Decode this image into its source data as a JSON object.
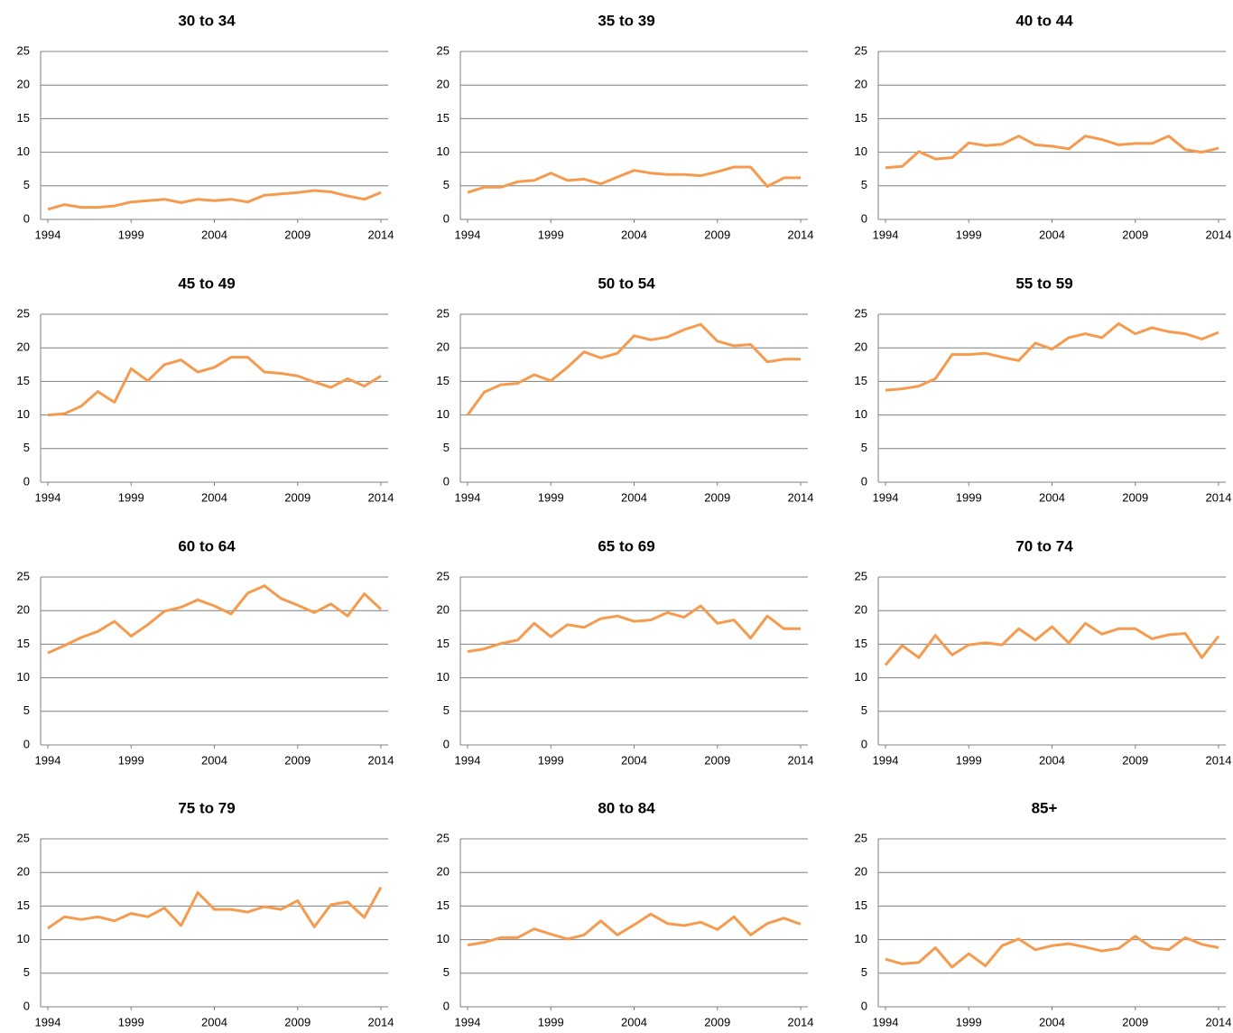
{
  "chart_data": [
    {
      "type": "line",
      "title": "30 to 34",
      "x": [
        1994,
        1995,
        1996,
        1997,
        1998,
        1999,
        2000,
        2001,
        2002,
        2003,
        2004,
        2005,
        2006,
        2007,
        2008,
        2009,
        2010,
        2011,
        2012,
        2013,
        2014
      ],
      "values": [
        1.5,
        2.2,
        1.8,
        1.8,
        2.0,
        2.6,
        2.8,
        3.0,
        2.5,
        3.0,
        2.8,
        3.0,
        2.6,
        3.6,
        3.8,
        4.0,
        4.3,
        4.1,
        3.5,
        3.0,
        4.0
      ],
      "color": "#f59b50",
      "xlim": [
        1994,
        2014
      ],
      "xticks": [
        1994,
        1999,
        2004,
        2009,
        2014
      ],
      "ylim": [
        0,
        25
      ],
      "yticks": [
        0,
        5,
        10,
        15,
        20,
        25
      ],
      "grid": true
    },
    {
      "type": "line",
      "title": "35 to 39",
      "x": [
        1994,
        1995,
        1996,
        1997,
        1998,
        1999,
        2000,
        2001,
        2002,
        2003,
        2004,
        2005,
        2006,
        2007,
        2008,
        2009,
        2010,
        2011,
        2012,
        2013,
        2014
      ],
      "values": [
        4.0,
        4.8,
        4.8,
        5.6,
        5.8,
        6.9,
        5.8,
        6.0,
        5.3,
        6.3,
        7.3,
        6.9,
        6.7,
        6.7,
        6.5,
        7.1,
        7.8,
        7.8,
        4.9,
        6.2,
        6.2
      ],
      "color": "#f59b50",
      "xlim": [
        1994,
        2014
      ],
      "xticks": [
        1994,
        1999,
        2004,
        2009,
        2014
      ],
      "ylim": [
        0,
        25
      ],
      "yticks": [
        0,
        5,
        10,
        15,
        20,
        25
      ],
      "grid": true
    },
    {
      "type": "line",
      "title": "40 to 44",
      "x": [
        1994,
        1995,
        1996,
        1997,
        1998,
        1999,
        2000,
        2001,
        2002,
        2003,
        2004,
        2005,
        2006,
        2007,
        2008,
        2009,
        2010,
        2011,
        2012,
        2013,
        2014
      ],
      "values": [
        7.7,
        7.9,
        10.1,
        9.0,
        9.2,
        11.4,
        11.0,
        11.2,
        12.4,
        11.1,
        10.9,
        10.5,
        12.4,
        11.9,
        11.1,
        11.3,
        11.3,
        12.4,
        10.4,
        10.0,
        10.6
      ],
      "color": "#f59b50",
      "xlim": [
        1994,
        2014
      ],
      "xticks": [
        1994,
        1999,
        2004,
        2009,
        2014
      ],
      "ylim": [
        0,
        25
      ],
      "yticks": [
        0,
        5,
        10,
        15,
        20,
        25
      ],
      "grid": true
    },
    {
      "type": "line",
      "title": "45 to 49",
      "x": [
        1994,
        1995,
        1996,
        1997,
        1998,
        1999,
        2000,
        2001,
        2002,
        2003,
        2004,
        2005,
        2006,
        2007,
        2008,
        2009,
        2010,
        2011,
        2012,
        2013,
        2014
      ],
      "values": [
        10.0,
        10.2,
        11.3,
        13.5,
        11.9,
        16.9,
        15.1,
        17.5,
        18.2,
        16.4,
        17.1,
        18.6,
        18.6,
        16.4,
        16.2,
        15.8,
        14.9,
        14.1,
        15.4,
        14.3,
        15.8
      ],
      "color": "#f59b50",
      "xlim": [
        1994,
        2014
      ],
      "xticks": [
        1994,
        1999,
        2004,
        2009,
        2014
      ],
      "ylim": [
        0,
        25
      ],
      "yticks": [
        0,
        5,
        10,
        15,
        20,
        25
      ],
      "grid": true
    },
    {
      "type": "line",
      "title": "50 to 54",
      "x": [
        1994,
        1995,
        1996,
        1997,
        1998,
        1999,
        2000,
        2001,
        2002,
        2003,
        2004,
        2005,
        2006,
        2007,
        2008,
        2009,
        2010,
        2011,
        2012,
        2013,
        2014
      ],
      "values": [
        10.0,
        13.4,
        14.5,
        14.7,
        16.0,
        15.1,
        17.1,
        19.4,
        18.5,
        19.2,
        21.8,
        21.2,
        21.6,
        22.7,
        23.5,
        21.0,
        20.3,
        20.5,
        17.9,
        18.3,
        18.3
      ],
      "color": "#f59b50",
      "xlim": [
        1994,
        2014
      ],
      "xticks": [
        1994,
        1999,
        2004,
        2009,
        2014
      ],
      "ylim": [
        0,
        25
      ],
      "yticks": [
        0,
        5,
        10,
        15,
        20,
        25
      ],
      "grid": true
    },
    {
      "type": "line",
      "title": "55 to 59",
      "x": [
        1994,
        1995,
        1996,
        1997,
        1998,
        1999,
        2000,
        2001,
        2002,
        2003,
        2004,
        2005,
        2006,
        2007,
        2008,
        2009,
        2010,
        2011,
        2012,
        2013,
        2014
      ],
      "values": [
        13.7,
        13.9,
        14.3,
        15.4,
        19.0,
        19.0,
        19.2,
        18.6,
        18.1,
        20.7,
        19.8,
        21.5,
        22.1,
        21.5,
        23.6,
        22.1,
        23.0,
        22.4,
        22.1,
        21.3,
        22.3
      ],
      "color": "#f59b50",
      "xlim": [
        1994,
        2014
      ],
      "xticks": [
        1994,
        1999,
        2004,
        2009,
        2014
      ],
      "ylim": [
        0,
        25
      ],
      "yticks": [
        0,
        5,
        10,
        15,
        20,
        25
      ],
      "grid": true
    },
    {
      "type": "line",
      "title": "60 to 64",
      "x": [
        1994,
        1995,
        1996,
        1997,
        1998,
        1999,
        2000,
        2001,
        2002,
        2003,
        2004,
        2005,
        2006,
        2007,
        2008,
        2009,
        2010,
        2011,
        2012,
        2013,
        2014
      ],
      "values": [
        13.7,
        14.8,
        16.0,
        16.9,
        18.4,
        16.2,
        17.9,
        19.9,
        20.5,
        21.6,
        20.7,
        19.5,
        22.6,
        23.7,
        21.8,
        20.8,
        19.7,
        21.0,
        19.2,
        22.5,
        20.2
      ],
      "color": "#f59b50",
      "xlim": [
        1994,
        2014
      ],
      "xticks": [
        1994,
        1999,
        2004,
        2009,
        2014
      ],
      "ylim": [
        0,
        25
      ],
      "yticks": [
        0,
        5,
        10,
        15,
        20,
        25
      ],
      "grid": true
    },
    {
      "type": "line",
      "title": "65 to 69",
      "x": [
        1994,
        1995,
        1996,
        1997,
        1998,
        1999,
        2000,
        2001,
        2002,
        2003,
        2004,
        2005,
        2006,
        2007,
        2008,
        2009,
        2010,
        2011,
        2012,
        2013,
        2014
      ],
      "values": [
        13.9,
        14.3,
        15.1,
        15.6,
        18.1,
        16.1,
        17.9,
        17.5,
        18.8,
        19.2,
        18.4,
        18.6,
        19.7,
        19.0,
        20.7,
        18.1,
        18.6,
        15.9,
        19.2,
        17.3,
        17.3
      ],
      "color": "#f59b50",
      "xlim": [
        1994,
        2014
      ],
      "xticks": [
        1994,
        1999,
        2004,
        2009,
        2014
      ],
      "ylim": [
        0,
        25
      ],
      "yticks": [
        0,
        5,
        10,
        15,
        20,
        25
      ],
      "grid": true
    },
    {
      "type": "line",
      "title": "70 to 74",
      "x": [
        1994,
        1995,
        1996,
        1997,
        1998,
        1999,
        2000,
        2001,
        2002,
        2003,
        2004,
        2005,
        2006,
        2007,
        2008,
        2009,
        2010,
        2011,
        2012,
        2013,
        2014
      ],
      "values": [
        11.9,
        14.8,
        13.0,
        16.3,
        13.4,
        14.9,
        15.2,
        14.9,
        17.3,
        15.6,
        17.6,
        15.2,
        18.1,
        16.5,
        17.3,
        17.3,
        15.8,
        16.4,
        16.6,
        13.0,
        16.2
      ],
      "color": "#f59b50",
      "xlim": [
        1994,
        2014
      ],
      "xticks": [
        1994,
        1999,
        2004,
        2009,
        2014
      ],
      "ylim": [
        0,
        25
      ],
      "yticks": [
        0,
        5,
        10,
        15,
        20,
        25
      ],
      "grid": true
    },
    {
      "type": "line",
      "title": "75 to 79",
      "x": [
        1994,
        1995,
        1996,
        1997,
        1998,
        1999,
        2000,
        2001,
        2002,
        2003,
        2004,
        2005,
        2006,
        2007,
        2008,
        2009,
        2010,
        2011,
        2012,
        2013,
        2014
      ],
      "values": [
        11.7,
        13.4,
        13.0,
        13.4,
        12.8,
        13.9,
        13.4,
        14.7,
        12.1,
        17.0,
        14.5,
        14.5,
        14.1,
        14.9,
        14.5,
        15.8,
        11.9,
        15.2,
        15.6,
        13.3,
        17.8
      ],
      "color": "#f59b50",
      "xlim": [
        1994,
        2014
      ],
      "xticks": [
        1994,
        1999,
        2004,
        2009,
        2014
      ],
      "ylim": [
        0,
        25
      ],
      "yticks": [
        0,
        5,
        10,
        15,
        20,
        25
      ],
      "grid": true
    },
    {
      "type": "line",
      "title": "80 to 84",
      "x": [
        1994,
        1995,
        1996,
        1997,
        1998,
        1999,
        2000,
        2001,
        2002,
        2003,
        2004,
        2005,
        2006,
        2007,
        2008,
        2009,
        2010,
        2011,
        2012,
        2013,
        2014
      ],
      "values": [
        9.2,
        9.6,
        10.3,
        10.3,
        11.6,
        10.8,
        10.1,
        10.7,
        12.8,
        10.7,
        12.2,
        13.8,
        12.4,
        12.1,
        12.6,
        11.5,
        13.4,
        10.7,
        12.4,
        13.2,
        12.3
      ],
      "color": "#f59b50",
      "xlim": [
        1994,
        2014
      ],
      "xticks": [
        1994,
        1999,
        2004,
        2009,
        2014
      ],
      "ylim": [
        0,
        25
      ],
      "yticks": [
        0,
        5,
        10,
        15,
        20,
        25
      ],
      "grid": true
    },
    {
      "type": "line",
      "title": "85+",
      "x": [
        1994,
        1995,
        1996,
        1997,
        1998,
        1999,
        2000,
        2001,
        2002,
        2003,
        2004,
        2005,
        2006,
        2007,
        2008,
        2009,
        2010,
        2011,
        2012,
        2013,
        2014
      ],
      "values": [
        7.1,
        6.4,
        6.6,
        8.8,
        5.9,
        7.9,
        6.1,
        9.1,
        10.1,
        8.5,
        9.1,
        9.4,
        8.9,
        8.3,
        8.7,
        10.5,
        8.8,
        8.5,
        10.3,
        9.3,
        8.8
      ],
      "color": "#f59b50",
      "xlim": [
        1994,
        2014
      ],
      "xticks": [
        1994,
        1999,
        2004,
        2009,
        2014
      ],
      "ylim": [
        0,
        25
      ],
      "yticks": [
        0,
        5,
        10,
        15,
        20,
        25
      ],
      "grid": true
    }
  ]
}
